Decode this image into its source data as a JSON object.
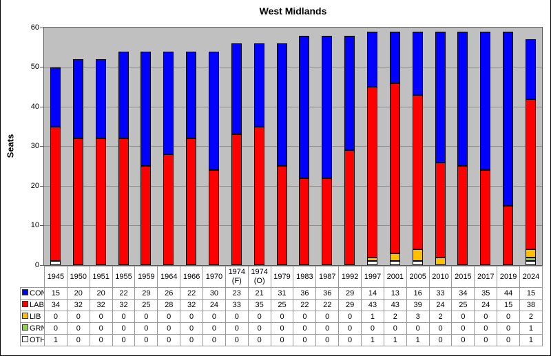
{
  "chart_data": {
    "type": "bar",
    "stacked": true,
    "title": "West Midlands",
    "xlabel": "",
    "ylabel": "Seats",
    "ylim": [
      0,
      60
    ],
    "yticks": [
      0,
      10,
      20,
      30,
      40,
      50,
      60
    ],
    "grid": true,
    "legend_position": "table-left",
    "categories": [
      "1945",
      "1950",
      "1951",
      "1955",
      "1959",
      "1964",
      "1966",
      "1970",
      "1974 (F)",
      "1974 (O)",
      "1979",
      "1983",
      "1987",
      "1992",
      "1997",
      "2001",
      "2005",
      "2010",
      "2015",
      "2017",
      "2019",
      "2024"
    ],
    "series": [
      {
        "name": "CON",
        "color": "#0000FF",
        "values": [
          15,
          20,
          20,
          22,
          29,
          26,
          22,
          30,
          23,
          21,
          31,
          36,
          36,
          29,
          14,
          13,
          16,
          33,
          34,
          35,
          44,
          15
        ]
      },
      {
        "name": "LAB",
        "color": "#FF0000",
        "values": [
          34,
          32,
          32,
          32,
          25,
          28,
          32,
          24,
          33,
          35,
          25,
          22,
          22,
          29,
          43,
          43,
          39,
          24,
          25,
          24,
          15,
          38
        ]
      },
      {
        "name": "LIB",
        "color": "#FFC000",
        "values": [
          0,
          0,
          0,
          0,
          0,
          0,
          0,
          0,
          0,
          0,
          0,
          0,
          0,
          0,
          1,
          2,
          3,
          2,
          0,
          0,
          0,
          2
        ]
      },
      {
        "name": "GRN",
        "color": "#92D050",
        "values": [
          0,
          0,
          0,
          0,
          0,
          0,
          0,
          0,
          0,
          0,
          0,
          0,
          0,
          0,
          0,
          0,
          0,
          0,
          0,
          0,
          0,
          1
        ]
      },
      {
        "name": "OTH",
        "color": "#FFFFFF",
        "values": [
          1,
          0,
          0,
          0,
          0,
          0,
          0,
          0,
          0,
          0,
          0,
          0,
          0,
          0,
          1,
          1,
          1,
          0,
          0,
          0,
          0,
          1
        ]
      }
    ],
    "stack_order_bottom_to_top": [
      "OTH",
      "GRN",
      "LIB",
      "LAB",
      "CON"
    ]
  },
  "colors": {
    "plot_background": "#C0C0C0",
    "gridline": "#8C8C8C",
    "plot_border": "#595959",
    "table_border": "#9A9A9A",
    "bar_outline": "#000000"
  }
}
